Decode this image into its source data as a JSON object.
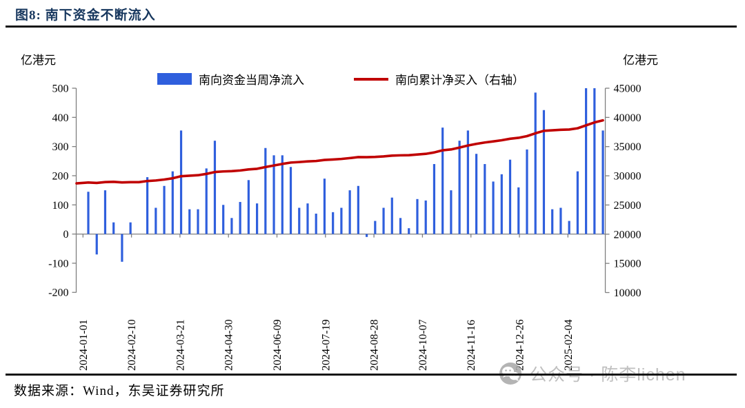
{
  "page": {
    "title": "图8:  南下资金不断流入",
    "source": "数据来源：Wind，东吴证券研究所",
    "watermark": "公众号 · 陈李lichen"
  },
  "chart_data": {
    "type": "bar",
    "title": "南下资金不断流入",
    "unit_left": "亿港元",
    "unit_right": "亿港元",
    "legend": [
      {
        "label": "南向资金当周净流入",
        "color": "#2f5fdd",
        "type": "bar"
      },
      {
        "label": "南向累计净买入（右轴）",
        "color": "#c00000",
        "type": "line"
      }
    ],
    "left_axis": {
      "min": -200,
      "max": 500,
      "step": 100,
      "ticks": [
        500,
        400,
        300,
        200,
        100,
        0,
        -100,
        -200
      ]
    },
    "right_axis": {
      "min": 10000,
      "max": 45000,
      "step": 5000,
      "ticks": [
        45000,
        40000,
        35000,
        30000,
        25000,
        20000,
        15000,
        10000
      ]
    },
    "x_tick_labels": [
      "2024-01-01",
      "2024-02-10",
      "2024-03-21",
      "2024-04-30",
      "2024-06-09",
      "2024-07-19",
      "2024-08-28",
      "2024-10-07",
      "2024-11-16",
      "2024-12-26",
      "2025-02-04"
    ],
    "weeks": [
      "2024-01-01",
      "2024-01-08",
      "2024-01-15",
      "2024-01-22",
      "2024-01-29",
      "2024-02-05",
      "2024-02-12",
      "2024-02-19",
      "2024-02-26",
      "2024-03-04",
      "2024-03-11",
      "2024-03-18",
      "2024-03-25",
      "2024-04-01",
      "2024-04-08",
      "2024-04-15",
      "2024-04-22",
      "2024-04-29",
      "2024-05-06",
      "2024-05-13",
      "2024-05-20",
      "2024-05-27",
      "2024-06-03",
      "2024-06-10",
      "2024-06-17",
      "2024-06-24",
      "2024-07-01",
      "2024-07-08",
      "2024-07-15",
      "2024-07-22",
      "2024-07-29",
      "2024-08-05",
      "2024-08-12",
      "2024-08-19",
      "2024-08-26",
      "2024-09-02",
      "2024-09-09",
      "2024-09-16",
      "2024-09-23",
      "2024-09-30",
      "2024-10-07",
      "2024-10-14",
      "2024-10-21",
      "2024-10-28",
      "2024-11-04",
      "2024-11-11",
      "2024-11-18",
      "2024-11-25",
      "2024-12-02",
      "2024-12-09",
      "2024-12-16",
      "2024-12-23",
      "2024-12-30",
      "2025-01-06",
      "2025-01-13",
      "2025-01-20",
      "2025-01-27",
      "2025-02-03",
      "2025-02-10",
      "2025-02-17",
      "2025-02-24",
      "2025-03-03"
    ],
    "bar_series": {
      "name": "南向资金当周净流入",
      "values": [
        145,
        -70,
        150,
        40,
        -95,
        40,
        0,
        195,
        90,
        165,
        215,
        355,
        85,
        85,
        225,
        320,
        100,
        55,
        110,
        185,
        105,
        295,
        270,
        270,
        230,
        90,
        105,
        70,
        190,
        75,
        90,
        150,
        165,
        -10,
        45,
        90,
        125,
        55,
        20,
        120,
        115,
        240,
        365,
        150,
        320,
        355,
        275,
        240,
        180,
        205,
        255,
        160,
        290,
        485,
        425,
        85,
        90,
        45,
        215,
        500,
        500,
        355
      ]
    },
    "line_series": {
      "name": "南向累计净买入（右轴）",
      "start": 28700,
      "values": [
        28845,
        28775,
        28925,
        28965,
        28870,
        28910,
        28910,
        29105,
        29195,
        29360,
        29575,
        29930,
        30015,
        30100,
        30325,
        30645,
        30745,
        30800,
        30910,
        31095,
        31200,
        31495,
        31765,
        32035,
        32265,
        32355,
        32460,
        32530,
        32720,
        32795,
        32885,
        33035,
        33200,
        33190,
        33235,
        33325,
        33450,
        33505,
        33525,
        33645,
        33760,
        34000,
        34365,
        34515,
        34835,
        35190,
        35465,
        35705,
        35885,
        36090,
        36345,
        36505,
        36795,
        37280,
        37705,
        37790,
        37880,
        37925,
        38140,
        38640,
        39140,
        39495
      ]
    },
    "axis_color": "#7f7f7f",
    "grid": "off",
    "legend_position": "top-center"
  }
}
